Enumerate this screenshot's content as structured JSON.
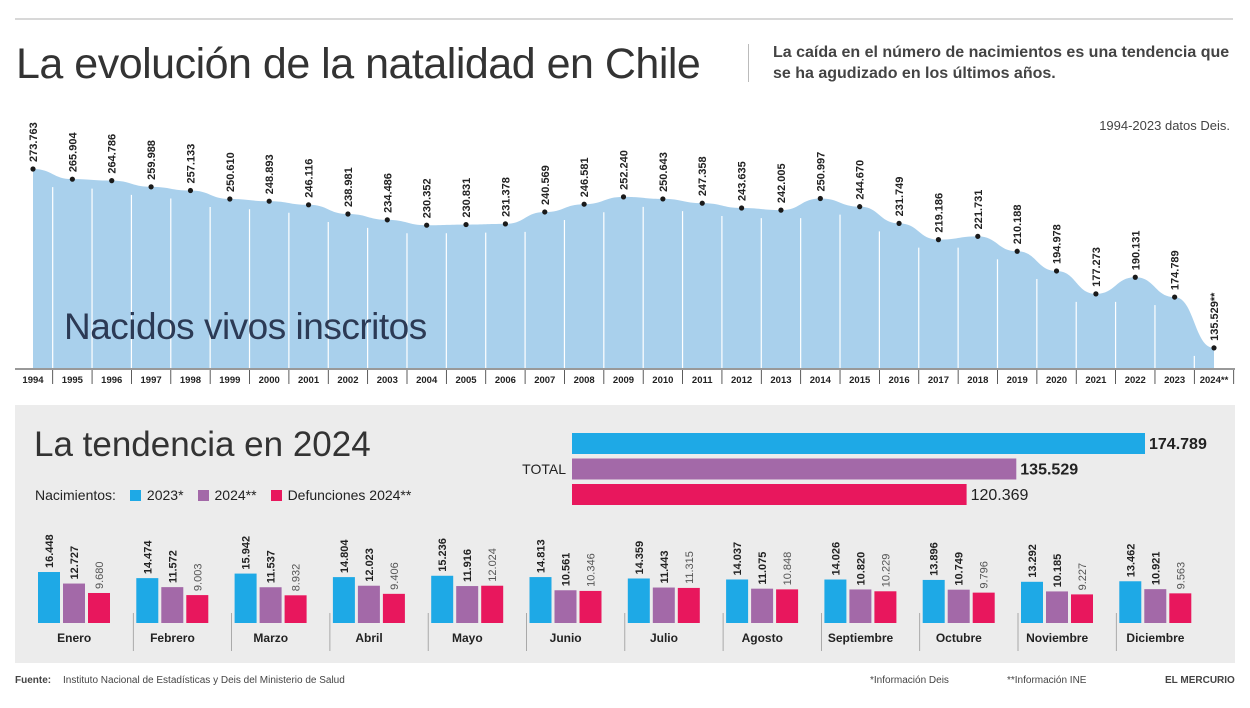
{
  "header": {
    "title": "La evolución de la natalidad en Chile",
    "subtitle": "La caída en el número de nacimientos es una tendencia que se ha agudizado en los últimos años.",
    "source_note": "1994-2023 datos Deis."
  },
  "colors": {
    "area": "#a9d0ec",
    "dot": "#1a1a1a",
    "c2023": "#1ea9e6",
    "c2024": "#a369a8",
    "defunciones": "#e8175d",
    "panel": "#ececec"
  },
  "chart_data": [
    {
      "type": "area",
      "series_label": "Nacidos vivos inscritos",
      "categories": [
        "1994",
        "1995",
        "1996",
        "1997",
        "1998",
        "1999",
        "2000",
        "2001",
        "2002",
        "2003",
        "2004",
        "2005",
        "2006",
        "2007",
        "2008",
        "2009",
        "2010",
        "2011",
        "2012",
        "2013",
        "2014",
        "2015",
        "2016",
        "2017",
        "2018",
        "2019",
        "2020",
        "2021",
        "2022",
        "2023",
        "2024**"
      ],
      "values": [
        273763,
        265904,
        264786,
        259988,
        257133,
        250610,
        248893,
        246116,
        238981,
        234486,
        230352,
        230831,
        231378,
        240569,
        246581,
        252240,
        250643,
        247358,
        243635,
        242005,
        250997,
        244670,
        231749,
        219186,
        221731,
        210188,
        194978,
        177273,
        190131,
        174789,
        135529
      ],
      "value_labels": [
        "273.763",
        "265.904",
        "264.786",
        "259.988",
        "257.133",
        "250.610",
        "248.893",
        "246.116",
        "238.981",
        "234.486",
        "230.352",
        "230.831",
        "231.378",
        "240.569",
        "246.581",
        "252.240",
        "250.643",
        "247.358",
        "243.635",
        "242.005",
        "250.997",
        "244.670",
        "231.749",
        "219.186",
        "221.731",
        "210.188",
        "194.978",
        "177.273",
        "190.131",
        "174.789",
        "135.529**"
      ],
      "ylim": [
        120000,
        290000
      ]
    },
    {
      "type": "bar",
      "orientation": "horizontal",
      "title": "La tendencia en 2024",
      "category": "TOTAL",
      "values": [
        174789,
        135529,
        120369
      ],
      "value_labels": [
        "174.789",
        "135.529",
        "120.369"
      ]
    },
    {
      "type": "bar",
      "legend_title": "Nacimientos:",
      "series": [
        {
          "name": "2023*",
          "values": [
            16448,
            14474,
            15942,
            14804,
            15236,
            14813,
            14359,
            14037,
            14026,
            13896,
            13292,
            13462
          ]
        },
        {
          "name": "2024**",
          "values": [
            12727,
            11572,
            11537,
            12023,
            11916,
            10561,
            11443,
            11075,
            10820,
            10749,
            10185,
            10921
          ]
        },
        {
          "name": "Defunciones 2024**",
          "values": [
            9680,
            9003,
            8932,
            9406,
            12024,
            10346,
            11315,
            10848,
            10229,
            9796,
            9227,
            9563
          ]
        }
      ],
      "categories": [
        "Enero",
        "Febrero",
        "Marzo",
        "Abril",
        "Mayo",
        "Junio",
        "Julio",
        "Agosto",
        "Septiembre",
        "Octubre",
        "Noviembre",
        "Diciembre"
      ]
    }
  ],
  "footer": {
    "source_label": "Fuente:",
    "source": "Instituto Nacional de Estadísticas y Deis del Ministerio de Salud",
    "note1": "*Información Deis",
    "note2": "**Información INE",
    "brand": "EL MERCURIO"
  }
}
